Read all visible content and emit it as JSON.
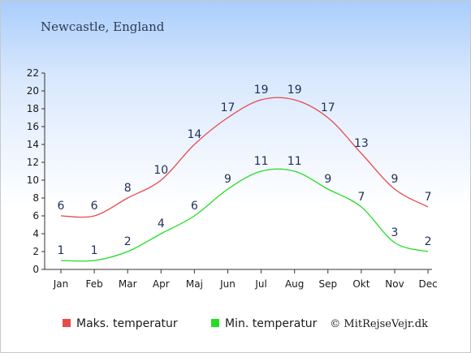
{
  "chart_data": {
    "type": "line",
    "title": "Newcastle, England",
    "categories": [
      "Jan",
      "Feb",
      "Mar",
      "Apr",
      "Maj",
      "Jun",
      "Jul",
      "Aug",
      "Sep",
      "Okt",
      "Nov",
      "Dec"
    ],
    "series": [
      {
        "name": "Maks. temperatur",
        "color": "#e84a4a",
        "values": [
          6,
          6,
          8,
          10,
          14,
          17,
          19,
          19,
          17,
          13,
          9,
          7
        ]
      },
      {
        "name": "Min. temperatur",
        "color": "#22dd22",
        "values": [
          1,
          1,
          2,
          4,
          6,
          9,
          11,
          11,
          9,
          7,
          3,
          2
        ]
      }
    ],
    "ylim": [
      0,
      22
    ],
    "yticks": [
      "0",
      "2",
      "4",
      "6",
      "8",
      "10",
      "12",
      "14",
      "16",
      "18",
      "20",
      "22"
    ],
    "grid": false,
    "legend_position": "bottom",
    "credit": "© MitRejseVejr.dk"
  }
}
